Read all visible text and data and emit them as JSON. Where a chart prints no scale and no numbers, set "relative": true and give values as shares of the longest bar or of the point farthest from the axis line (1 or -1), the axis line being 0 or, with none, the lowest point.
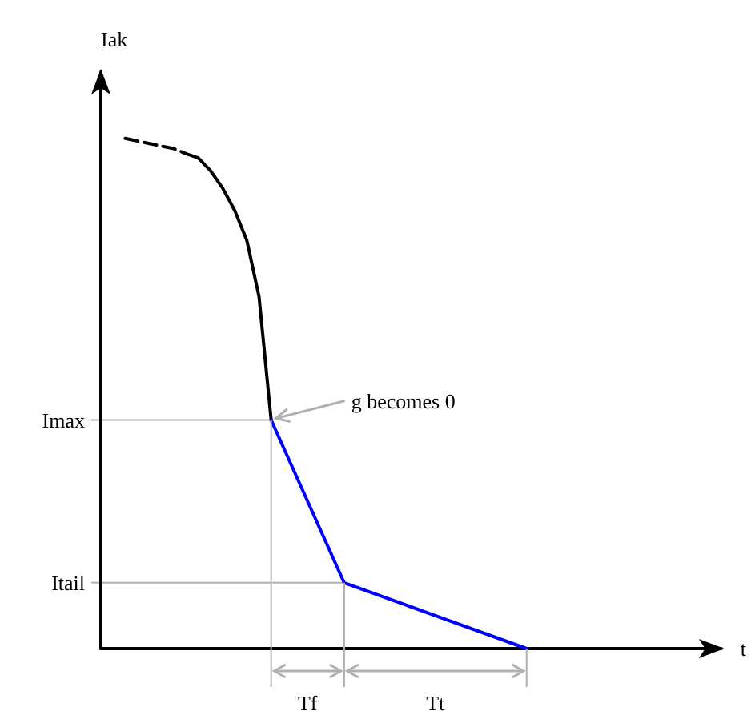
{
  "chart_data": {
    "type": "line",
    "relative": true,
    "ylabel": "Iak",
    "xlabel": "t",
    "grid": false,
    "marker": "none",
    "categories": [
      null,
      null,
      null,
      null,
      null,
      null,
      null,
      null,
      null,
      null,
      null,
      null,
      null,
      null,
      null,
      null,
      null,
      null,
      null,
      null,
      null,
      null,
      null,
      null,
      null,
      null,
      null,
      null,
      null,
      null,
      null,
      null,
      null,
      null,
      null,
      null,
      null,
      null,
      null,
      null,
      null,
      null,
      null,
      null,
      null,
      null
    ],
    "series": [
      {
        "color": "#000000",
        "line_style": "dashed",
        "values": [
          null,
          null,
          1.0,
          0.995,
          0.99,
          0.985,
          0.98,
          0.97,
          null,
          null,
          null,
          null,
          null,
          null,
          null,
          null,
          null,
          null,
          null,
          null,
          null,
          null,
          null,
          null,
          null,
          null,
          null,
          null,
          null,
          null,
          null,
          null,
          null,
          null,
          null,
          null,
          null,
          null,
          null,
          null,
          null,
          null,
          null,
          null,
          null,
          null
        ]
      },
      {
        "color": "#000000",
        "line_style": "solid",
        "values": [
          null,
          null,
          null,
          null,
          null,
          null,
          null,
          0.97,
          0.962,
          0.937,
          0.903,
          0.859,
          0.8,
          0.69,
          0.448,
          null,
          null,
          null,
          null,
          null,
          null,
          null,
          null,
          null,
          null,
          null,
          null,
          null,
          null,
          null,
          null,
          null,
          null,
          null,
          null,
          null,
          null,
          null,
          null,
          null,
          null,
          null,
          null,
          null,
          null,
          null
        ]
      },
      {
        "color": "#0000ff",
        "line_style": "solid",
        "values": [
          null,
          null,
          null,
          null,
          null,
          null,
          null,
          null,
          null,
          null,
          null,
          null,
          null,
          null,
          0.448,
          null,
          null,
          null,
          null,
          null,
          0.129,
          null,
          null,
          null,
          null,
          null,
          null,
          null,
          null,
          null,
          null,
          null,
          null,
          null,
          null,
          0,
          null,
          null,
          null,
          null,
          null,
          null,
          null,
          null,
          null,
          null
        ]
      }
    ],
    "ref_lines": [
      {
        "axis": "y",
        "value": 0.448,
        "label": "Imax",
        "color": "#b0b0b0"
      },
      {
        "axis": "y",
        "value": 0.129,
        "label": "Itail",
        "color": "#b0b0b0"
      }
    ],
    "annotations": [
      "g becomes 0",
      "Tf",
      "Tt"
    ]
  }
}
